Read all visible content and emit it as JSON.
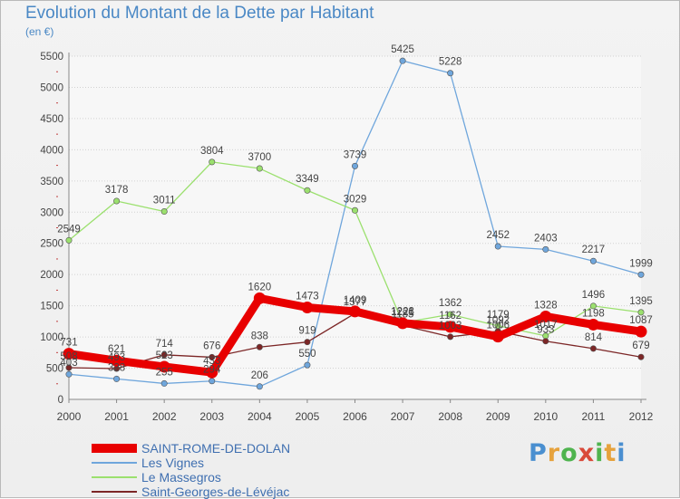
{
  "title": "Evolution du Montant de la Dette par Habitant",
  "subtitle": "(en €)",
  "brand": {
    "letters": [
      "P",
      "r",
      "o",
      "x",
      "i",
      "t",
      "i"
    ],
    "colors": [
      "#4a8fd0",
      "#e6a23c",
      "#4fb44f",
      "#d94a3a",
      "#4fb44f",
      "#e6a23c",
      "#4a8fd0"
    ]
  },
  "chart_data": {
    "type": "line",
    "categories": [
      "2000",
      "2001",
      "2002",
      "2003",
      "2004",
      "2005",
      "2006",
      "2007",
      "2008",
      "2009",
      "2010",
      "2011",
      "2012"
    ],
    "ylim": [
      0,
      5500
    ],
    "yticks": [
      "0",
      "500",
      "1000",
      "1500",
      "2000",
      "2500",
      "3000",
      "3500",
      "4000",
      "4500",
      "5000",
      "5500"
    ],
    "grid": "horizontal",
    "legend_position": "bottom-left",
    "series": [
      {
        "name": "SAINT-ROME-DE-DOLAN",
        "color": "#e80000",
        "values": [
          731,
          621,
          523,
          433,
          1620,
          1473,
          1409,
          1221,
          1162,
          1006,
          1328,
          1198,
          1087
        ],
        "labels": [
          "731",
          "621",
          "523",
          "433",
          "1620",
          "1473",
          "1409",
          "1221",
          "1162",
          "1006",
          "1328",
          "1198",
          "1087"
        ],
        "emphasis": true
      },
      {
        "name": "Les Vignes",
        "color": "#6fa6dc",
        "values": [
          403,
          328,
          255,
          294,
          206,
          550,
          3739,
          5425,
          5228,
          2452,
          2403,
          2217,
          1999
        ],
        "labels": [
          "403",
          "328",
          "255",
          "294",
          "206",
          "550",
          "3739",
          "5425",
          "5228",
          "2452",
          "2403",
          "2217",
          "1999"
        ],
        "emphasis": false
      },
      {
        "name": "Le Massegros",
        "color": "#9be06e",
        "values": [
          2549,
          3178,
          3011,
          3804,
          3700,
          3349,
          3029,
          1228,
          1362,
          1179,
          1017,
          1496,
          1395
        ],
        "labels": [
          "2549",
          "3178",
          "3011",
          "3804",
          "3700",
          "3349",
          "3029",
          "1228",
          "1362",
          "1179",
          "1017",
          "1496",
          "1395"
        ],
        "emphasis": false
      },
      {
        "name": "Saint-Georges-de-Lévéjac",
        "color": "#7c2626",
        "values": [
          508,
          493,
          714,
          676,
          838,
          919,
          1377,
          1185,
          1003,
          1092,
          933,
          814,
          679
        ],
        "labels": [
          "508",
          "493",
          "714",
          "676",
          "838",
          "919",
          "1377",
          "1185",
          "1003",
          "1092",
          "933",
          "814",
          "679"
        ],
        "emphasis": false
      }
    ]
  }
}
